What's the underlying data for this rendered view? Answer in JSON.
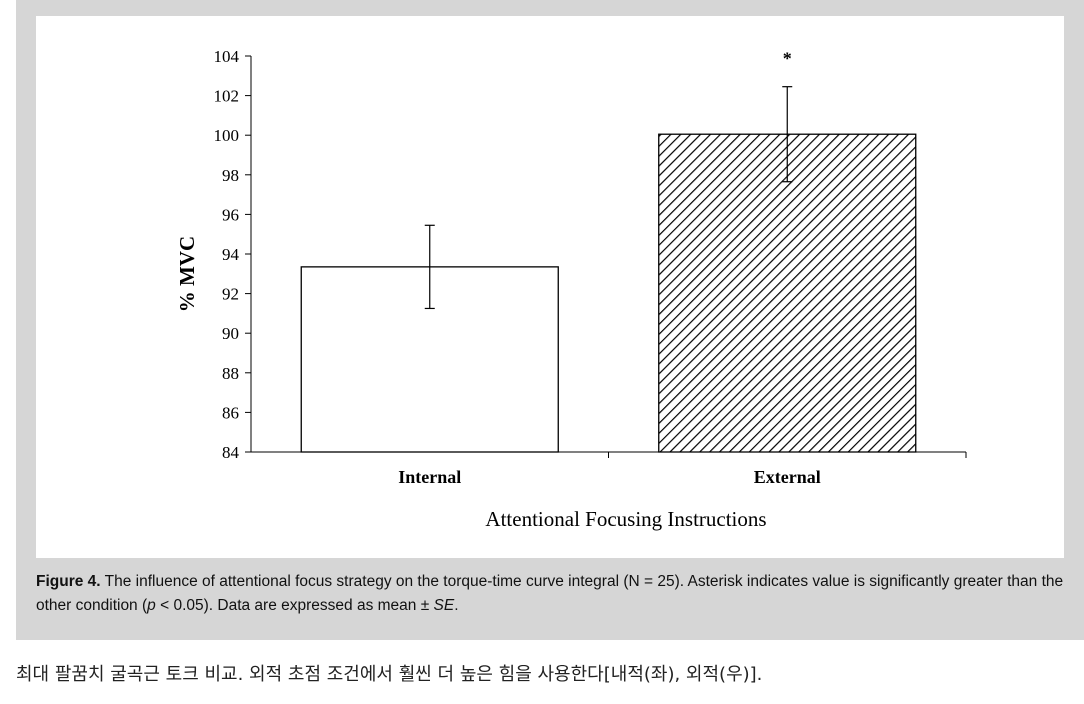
{
  "chart_data": {
    "type": "bar",
    "categories": [
      "Internal",
      "External"
    ],
    "values": [
      93.35,
      100.05
    ],
    "errors": [
      2.1,
      2.4
    ],
    "ylim": [
      84,
      104
    ],
    "yticks": [
      "84",
      "86",
      "88",
      "90",
      "92",
      "94",
      "96",
      "98",
      "100",
      "102",
      "104"
    ],
    "ylabel": "% MVC",
    "xlabel": "Attentional Focusing Instructions",
    "annotation": "*",
    "bar_styles": [
      "plain",
      "hatched"
    ]
  },
  "caption": {
    "label": "Figure 4.",
    "text": "The influence of attentional focus strategy on the torque-time curve integral (N = 25). Asterisk indicates value is significantly greater than the other condition (",
    "p_symbol": "p",
    "p_rest": " < 0.05). Data are expressed as mean ± ",
    "se": "SE",
    "end": "."
  },
  "footer": {
    "text": "최대 팔꿈치 굴곡근 토크 비교. 외적 초점 조건에서 훨씬 더 높은 힘을 사용한다[내적(좌), 외적(우)]."
  }
}
